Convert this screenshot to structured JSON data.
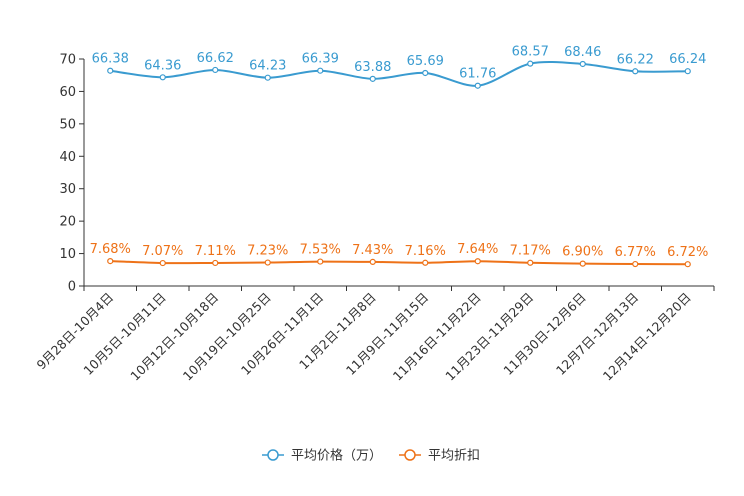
{
  "chart_data": {
    "type": "line",
    "title": "",
    "xlabel": "",
    "ylabel": "",
    "ylim": [
      0,
      70
    ],
    "yticks": [
      0,
      10,
      20,
      30,
      40,
      50,
      60,
      70
    ],
    "grid": false,
    "legend_position": "bottom-center",
    "categories": [
      "9月28日-10月4日",
      "10月5日-10月11日",
      "10月12日-10月18日",
      "10月19日-10月25日",
      "10月26日-11月1日",
      "11月2日-11月8日",
      "11月9日-11月15日",
      "11月16日-11月22日",
      "11月23日-11月29日",
      "11月30日-12月6日",
      "12月7日-12月13日",
      "12月14日-12月20日"
    ],
    "series": [
      {
        "name": "平均价格（万）",
        "color": "#3a9bd0",
        "values": [
          66.38,
          64.36,
          66.62,
          64.23,
          66.39,
          63.88,
          65.69,
          61.76,
          68.57,
          68.46,
          66.22,
          66.24
        ],
        "labels": [
          "66.38",
          "64.36",
          "66.62",
          "64.23",
          "66.39",
          "63.88",
          "65.69",
          "61.76",
          "68.57",
          "68.46",
          "66.22",
          "66.24"
        ]
      },
      {
        "name": "平均折扣",
        "color": "#ee7218",
        "values": [
          7.68,
          7.07,
          7.11,
          7.23,
          7.53,
          7.43,
          7.16,
          7.64,
          7.17,
          6.9,
          6.77,
          6.72
        ],
        "labels": [
          "7.68%",
          "7.07%",
          "7.11%",
          "7.23%",
          "7.53%",
          "7.43%",
          "7.16%",
          "7.64%",
          "7.17%",
          "6.90%",
          "6.77%",
          "6.72%"
        ]
      }
    ]
  }
}
